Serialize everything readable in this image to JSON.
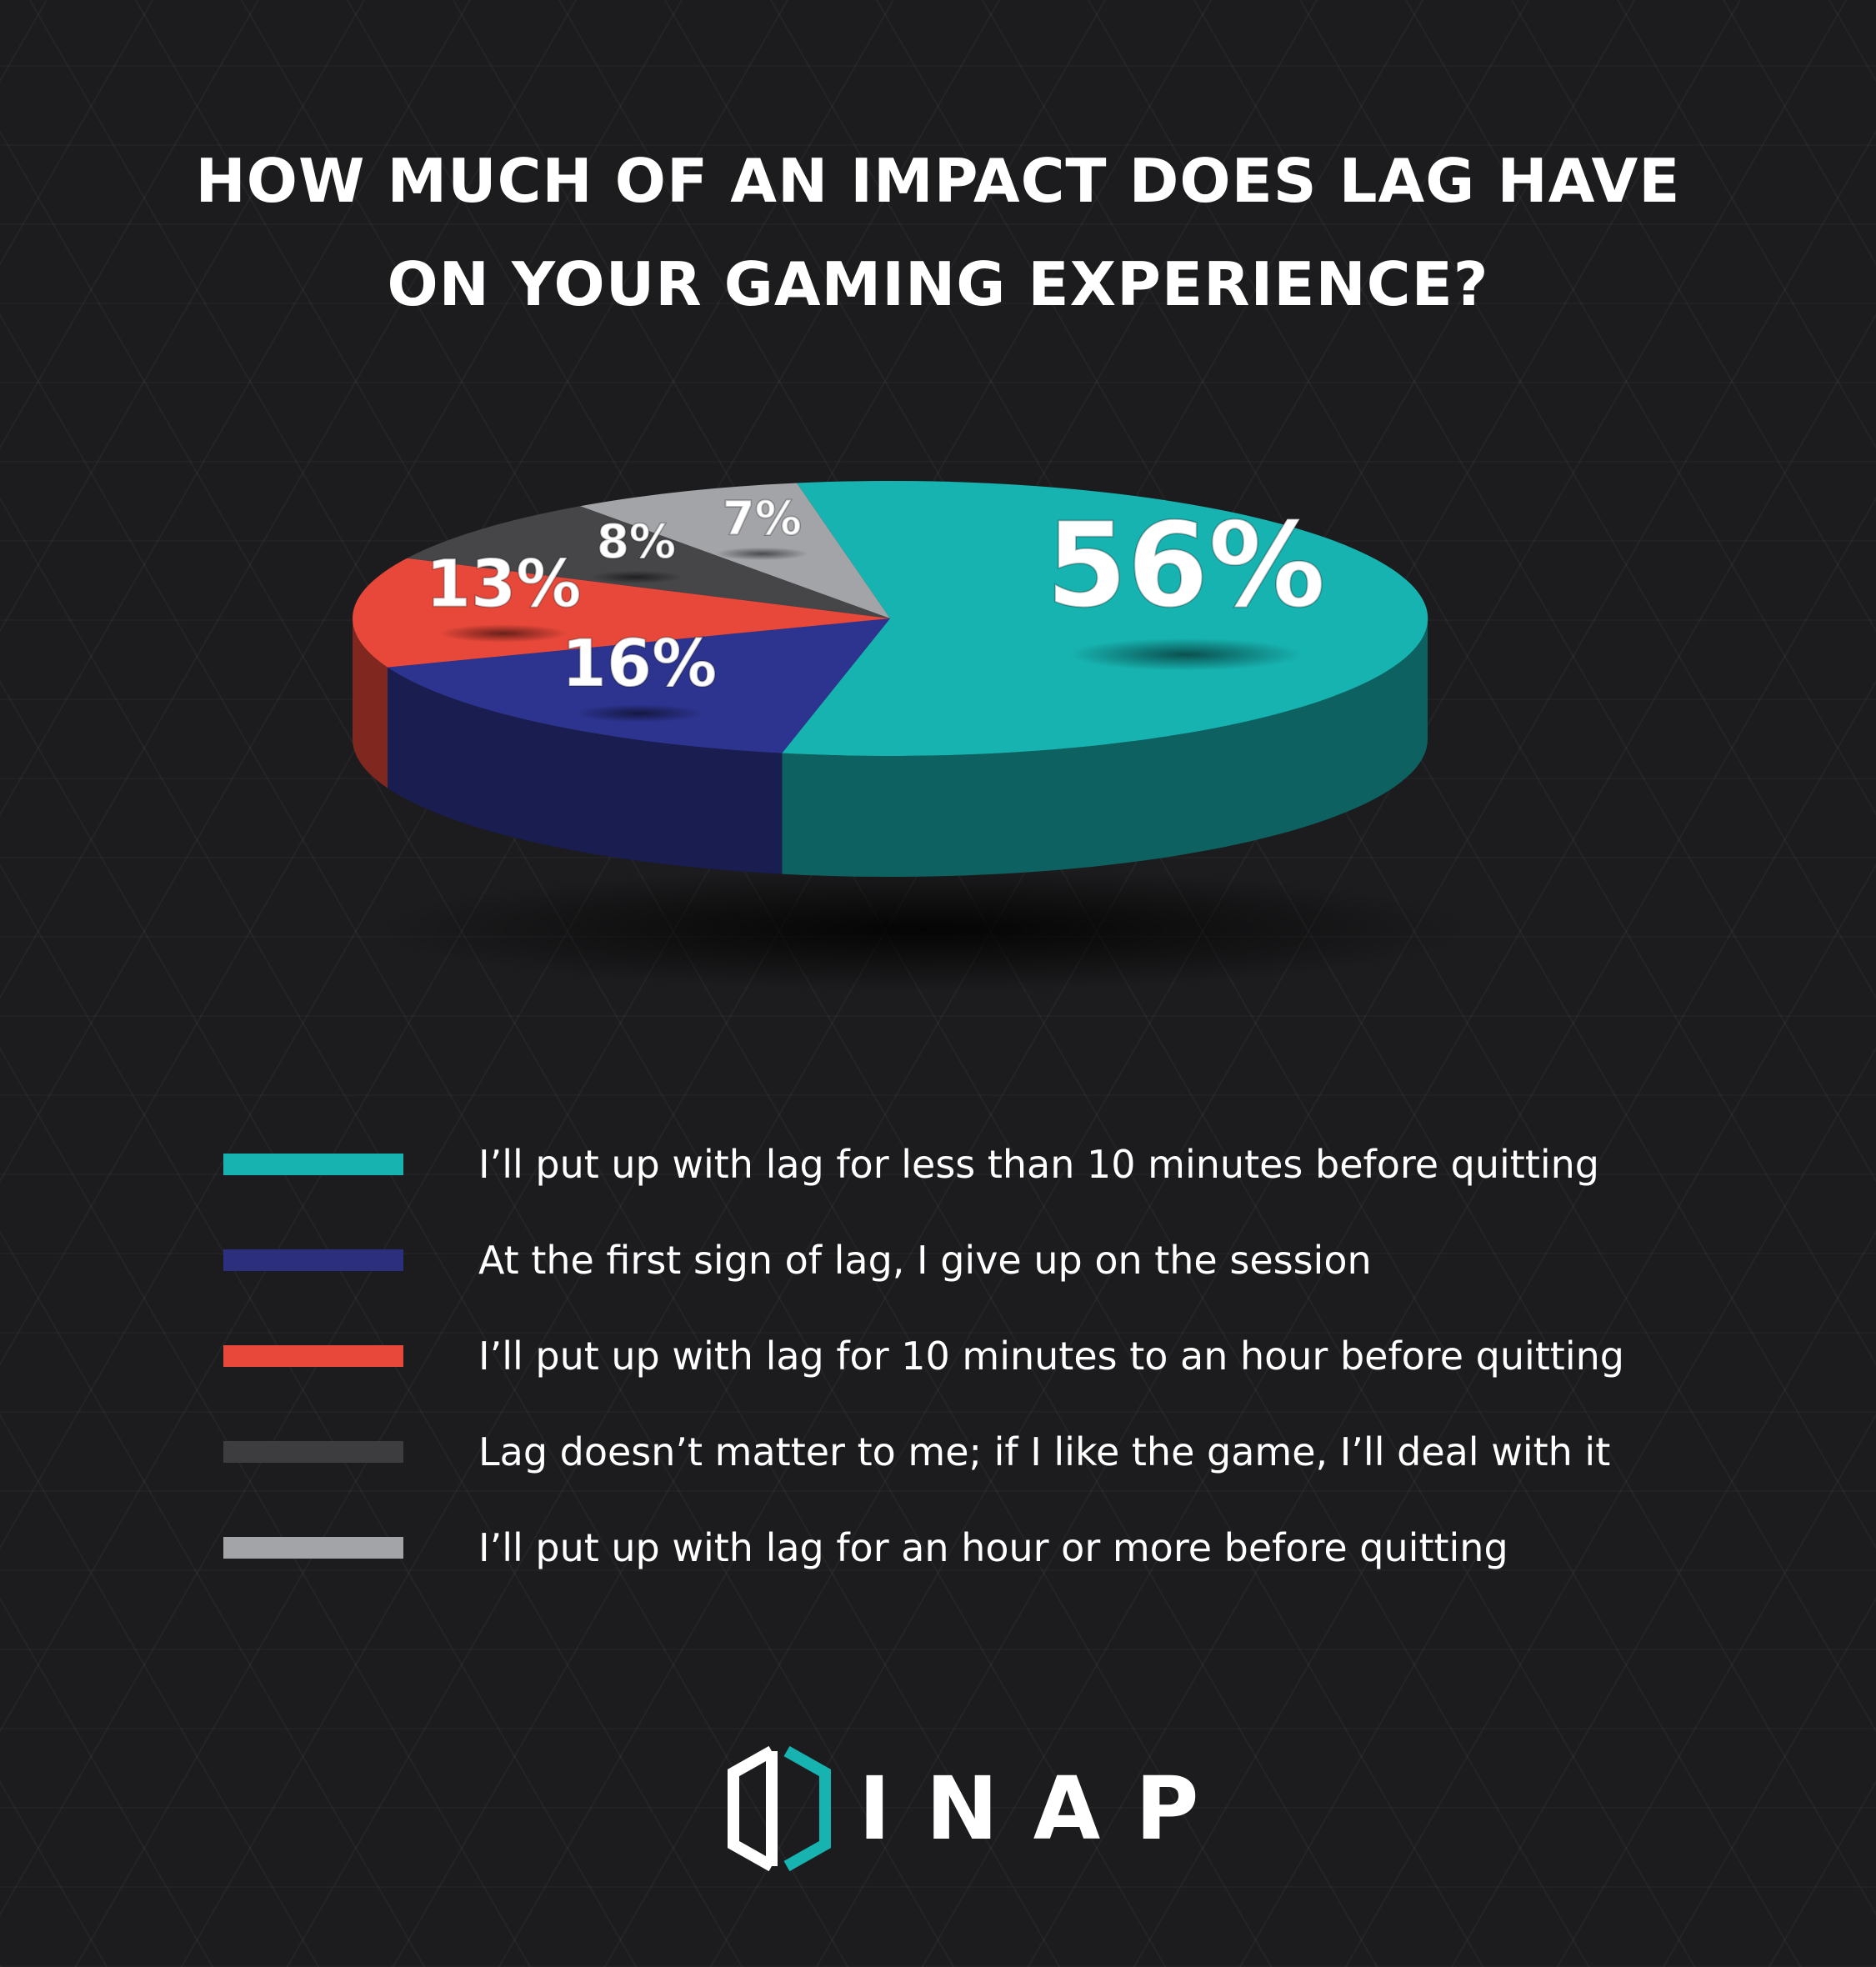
{
  "title": {
    "line1": "HOW MUCH OF AN IMPACT DOES LAG HAVE",
    "line2": "ON YOUR GAMING EXPERIENCE?"
  },
  "chart_data": {
    "type": "pie",
    "style": "3d",
    "title": "HOW MUCH OF AN IMPACT DOES LAG HAVE ON YOUR GAMING EXPERIENCE?",
    "unit": "%",
    "legend_position": "bottom",
    "slices": [
      {
        "label": "I’ll put up with lag for less than 10 minutes before quitting",
        "value": 56,
        "display": "56%",
        "color": "#17b3b0"
      },
      {
        "label": "At the first sign of lag, I give up on the session",
        "value": 16,
        "display": "16%",
        "color": "#2d3490"
      },
      {
        "label": "I’ll put up with lag for 10 minutes to an hour before quitting",
        "value": 13,
        "display": "13%",
        "color": "#e8483a"
      },
      {
        "label": "Lag doesn’t matter to me; if I like the game, I’ll deal with it",
        "value": 8,
        "display": "8%",
        "color": "#464649"
      },
      {
        "label": "I’ll put up with lag for an hour or more before quitting",
        "value": 7,
        "display": "7%",
        "color": "#a3a4a8"
      }
    ]
  },
  "legend": [
    {
      "label": "I’ll put up with lag for less than 10 minutes before quitting",
      "color": "#17b3b0"
    },
    {
      "label": "At the first sign of lag, I give up on the session",
      "color": "#2b2f7e"
    },
    {
      "label": "I’ll put up with lag for 10 minutes to an hour before quitting",
      "color": "#e8483a"
    },
    {
      "label": "Lag doesn’t matter to me; if I like the game, I’ll deal with it",
      "color": "#3d3d40"
    },
    {
      "label": "I’ll put up with lag for an hour or more before quitting",
      "color": "#a3a4a8"
    }
  ],
  "logo": {
    "text": "INAP",
    "accent": "#17b3b0"
  }
}
